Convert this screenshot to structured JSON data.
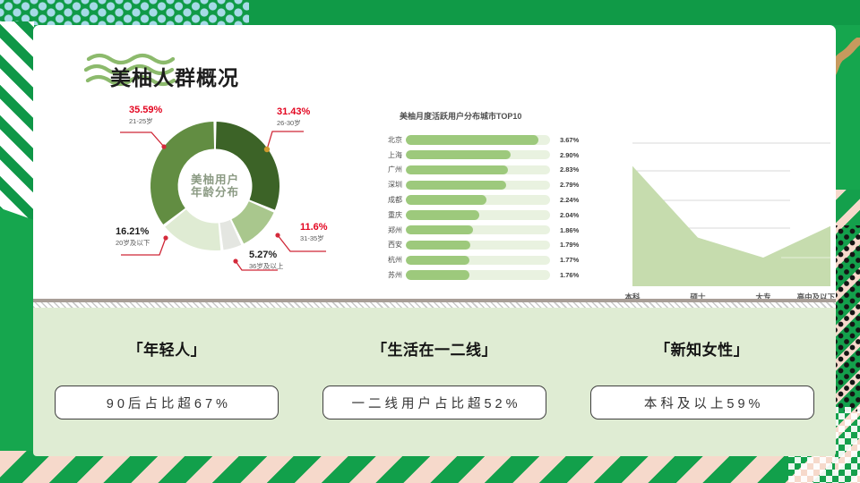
{
  "slide": {
    "title": "美柚人群概况"
  },
  "colors": {
    "background_green": "#16a64e",
    "panel_green": "#dfecd3",
    "accent_red": "#e30520",
    "bar_green": "#9dc97c",
    "area_green": "#c6dcae"
  },
  "chart_data": [
    {
      "type": "pie",
      "title": "美柚用户年龄分布",
      "center_line1": "美柚用户",
      "center_line2": "年龄分布",
      "legend_position": "callouts",
      "segments": [
        {
          "label": "26-30岁",
          "pct": "31.43%",
          "value": 31.43,
          "color": "#3c6327"
        },
        {
          "label": "31-35岁",
          "pct": "11.6%",
          "value": 11.6,
          "color": "#a9c78d"
        },
        {
          "label": "36岁及以上",
          "pct": "5.27%",
          "value": 5.27,
          "color": "#e4e6e1"
        },
        {
          "label": "20岁及以下",
          "pct": "16.21%",
          "value": 16.21,
          "color": "#dfebd3"
        },
        {
          "label": "21-25岁",
          "pct": "35.59%",
          "value": 35.59,
          "color": "#628d42"
        }
      ]
    },
    {
      "type": "bar",
      "orientation": "horizontal",
      "title": "美柚月度活跃用户分布城市TOP10",
      "categories": [
        "北京",
        "上海",
        "广州",
        "深圳",
        "成都",
        "重庆",
        "郑州",
        "西安",
        "杭州",
        "苏州"
      ],
      "values": [
        3.67,
        2.9,
        2.83,
        2.79,
        2.24,
        2.04,
        1.86,
        1.79,
        1.77,
        1.76
      ],
      "value_labels": [
        "3.67%",
        "2.90%",
        "2.83%",
        "2.79%",
        "2.24%",
        "2.04%",
        "1.86%",
        "1.79%",
        "1.77%",
        "1.76%"
      ],
      "xlim": [
        0,
        4.0
      ],
      "grid": false
    },
    {
      "type": "area",
      "title": "",
      "categories": [
        "本科",
        "硕士",
        "大专",
        "高中及以下"
      ],
      "values": [
        42,
        17,
        10,
        21
      ],
      "ylim": [
        0,
        50
      ],
      "grid": true,
      "legend_position": "none"
    }
  ],
  "highlights": [
    {
      "heading": "「年轻人」",
      "stat": "90后占比超67%"
    },
    {
      "heading": "「生活在一二线」",
      "stat": "一二线用户占比超52%"
    },
    {
      "heading": "「新知女性」",
      "stat": "本科及以上59%"
    }
  ]
}
